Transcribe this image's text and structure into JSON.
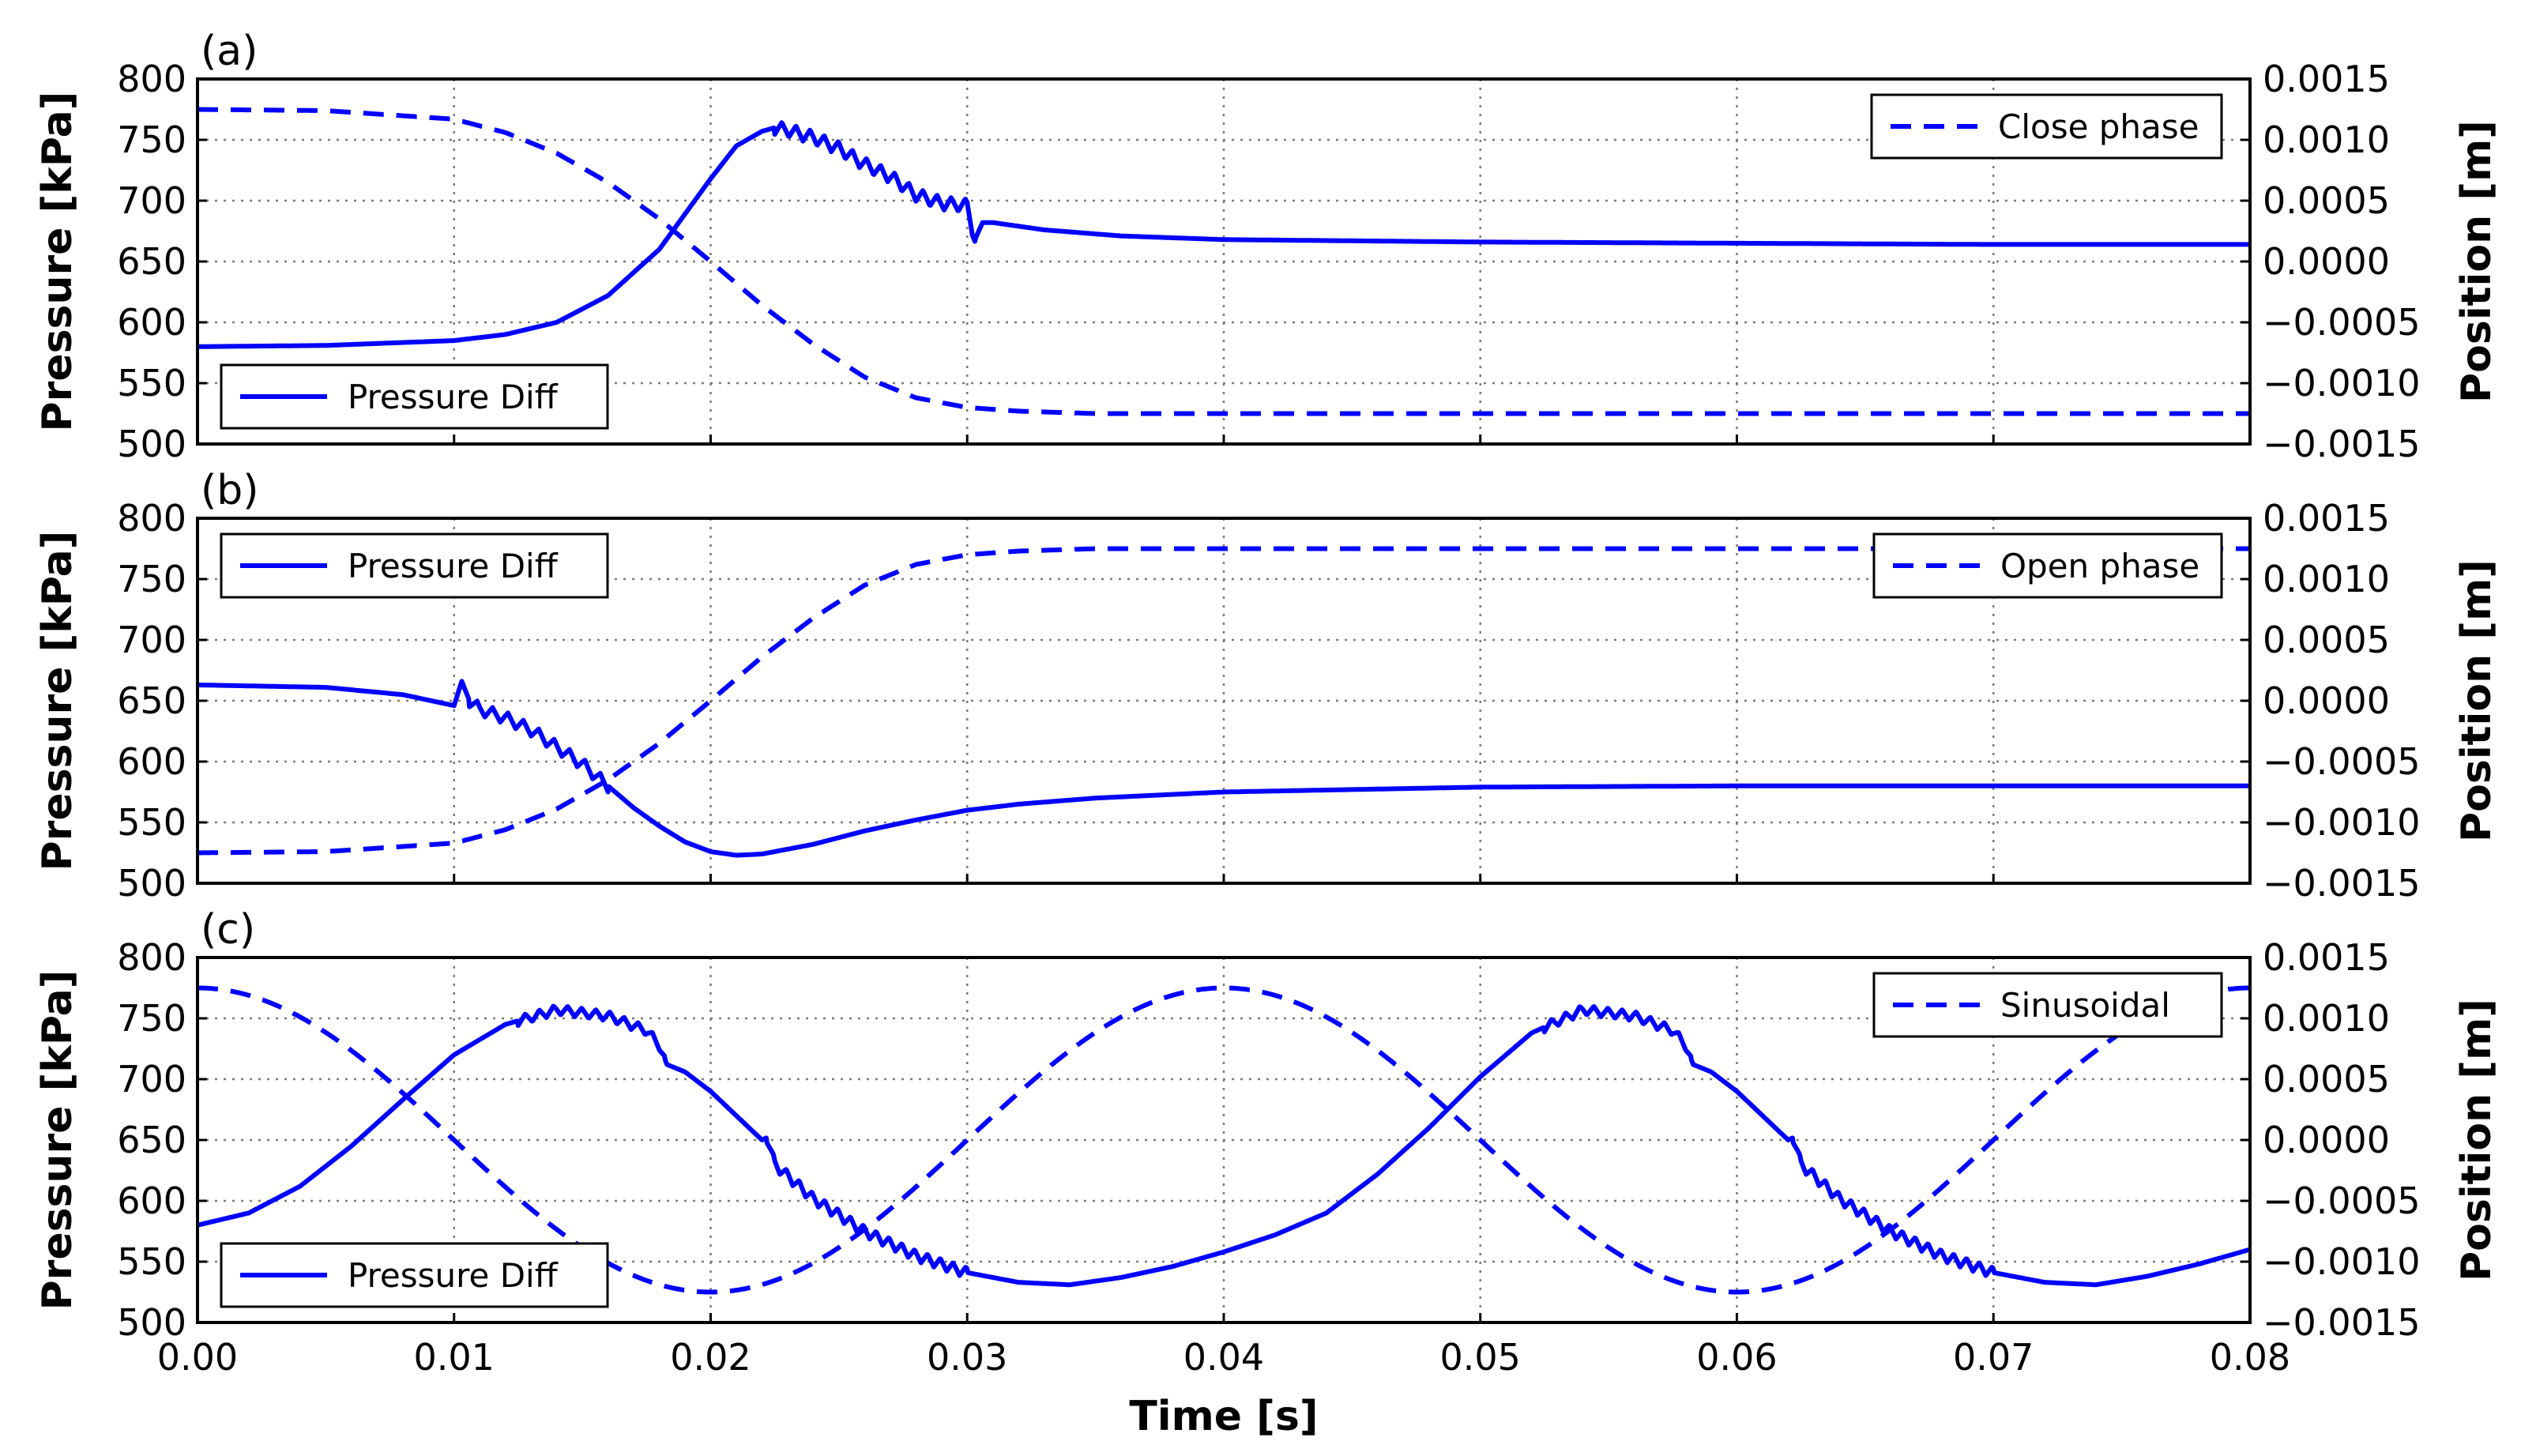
{
  "chart_data": {
    "xlabel": "Time [s]",
    "x_ticks": [
      "0.00",
      "0.01",
      "0.02",
      "0.03",
      "0.04",
      "0.05",
      "0.06",
      "0.07",
      "0.08"
    ],
    "xlim": [
      0,
      0.08
    ],
    "colors": {
      "series": "#0000ff",
      "grid": "#7a7a7a",
      "axes": "#000000"
    },
    "panels": [
      {
        "label": "(a)",
        "type": "line",
        "left_axis": {
          "title": "Pressure [kPa]",
          "ylim": [
            500,
            800
          ],
          "ticks": [
            "800",
            "750",
            "700",
            "650",
            "600",
            "550",
            "500"
          ]
        },
        "right_axis": {
          "title": "Position [m]",
          "ylim": [
            -0.0015,
            0.0015
          ],
          "ticks": [
            "0.0015",
            "0.0010",
            "0.0005",
            "0.0000",
            "−0.0005",
            "−0.0010",
            "−0.0015"
          ]
        },
        "legend_left": {
          "label": "Pressure Diff",
          "placement": "lower-left"
        },
        "legend_right": {
          "label": "Close phase",
          "placement": "upper-right"
        },
        "series": [
          {
            "name": "Pressure Diff",
            "axis": "left",
            "style": "solid",
            "x": [
              0,
              0.005,
              0.01,
              0.012,
              0.014,
              0.016,
              0.018,
              0.02,
              0.021,
              0.022,
              0.0225,
              0.023,
              0.024,
              0.025,
              0.026,
              0.027,
              0.028,
              0.029,
              0.03,
              0.0303,
              0.0306,
              0.031,
              0.033,
              0.036,
              0.04,
              0.05,
              0.06,
              0.07,
              0.08
            ],
            "y": [
              580,
              581,
              585,
              590,
              600,
              622,
              660,
              718,
              745,
              757,
              760,
              758,
              752,
              743,
              730,
              720,
              705,
              698,
              696,
              668,
              682,
              682,
              676,
              671,
              668,
              666,
              665,
              664,
              664
            ],
            "ripple": [
              {
                "start": 0.0225,
                "end": 0.0303,
                "amp": 11,
                "period": 0.00055
              }
            ]
          },
          {
            "name": "Close phase",
            "axis": "right",
            "style": "dashed",
            "x": [
              0,
              0.005,
              0.01,
              0.012,
              0.014,
              0.016,
              0.018,
              0.02,
              0.022,
              0.024,
              0.026,
              0.028,
              0.03,
              0.032,
              0.035,
              0.04,
              0.05,
              0.06,
              0.07,
              0.08
            ],
            "y": [
              0.00125,
              0.00124,
              0.00117,
              0.00106,
              0.00089,
              0.00065,
              0.00035,
              0.0,
              -0.00036,
              -0.00068,
              -0.00095,
              -0.00112,
              -0.0012,
              -0.00123,
              -0.00125,
              -0.00125,
              -0.00125,
              -0.00125,
              -0.00125,
              -0.00125
            ]
          }
        ]
      },
      {
        "label": "(b)",
        "type": "line",
        "left_axis": {
          "title": "Pressure [kPa]",
          "ylim": [
            500,
            800
          ],
          "ticks": [
            "800",
            "750",
            "700",
            "650",
            "600",
            "550",
            "500"
          ]
        },
        "right_axis": {
          "title": "Position [m]",
          "ylim": [
            -0.0015,
            0.0015
          ],
          "ticks": [
            "0.0015",
            "0.0010",
            "0.0005",
            "0.0000",
            "−0.0005",
            "−0.0010",
            "−0.0015"
          ]
        },
        "legend_left": {
          "label": "Pressure Diff",
          "placement": "upper-left"
        },
        "legend_right": {
          "label": "Open phase",
          "placement": "upper-right"
        },
        "series": [
          {
            "name": "Pressure Diff",
            "axis": "left",
            "style": "solid",
            "x": [
              0,
              0.005,
              0.008,
              0.01,
              0.0103,
              0.0106,
              0.011,
              0.012,
              0.013,
              0.014,
              0.015,
              0.016,
              0.017,
              0.018,
              0.019,
              0.02,
              0.021,
              0.022,
              0.024,
              0.026,
              0.028,
              0.03,
              0.032,
              0.035,
              0.04,
              0.05,
              0.06,
              0.07,
              0.08
            ],
            "y": [
              663,
              661,
              655,
              646,
              666,
              650,
              643,
              636,
              626,
              612,
              598,
              580,
              562,
              547,
              534,
              526,
              523,
              524,
              532,
              543,
              552,
              560,
              565,
              570,
              575,
              579,
              580,
              580,
              580
            ],
            "ripple": [
              {
                "start": 0.0106,
                "end": 0.016,
                "amp": 10,
                "period": 0.0006
              }
            ]
          },
          {
            "name": "Open phase",
            "axis": "right",
            "style": "dashed",
            "x": [
              0,
              0.005,
              0.01,
              0.012,
              0.014,
              0.016,
              0.018,
              0.02,
              0.022,
              0.024,
              0.026,
              0.028,
              0.03,
              0.032,
              0.035,
              0.04,
              0.05,
              0.06,
              0.07,
              0.08
            ],
            "y": [
              -0.00125,
              -0.00124,
              -0.00117,
              -0.00106,
              -0.00089,
              -0.00065,
              -0.00035,
              0.0,
              0.00036,
              0.00068,
              0.00095,
              0.00112,
              0.0012,
              0.00123,
              0.00125,
              0.00125,
              0.00125,
              0.00125,
              0.00125,
              0.00125
            ]
          }
        ]
      },
      {
        "label": "(c)",
        "type": "line",
        "left_axis": {
          "title": "Pressure [kPa]",
          "ylim": [
            500,
            800
          ],
          "ticks": [
            "800",
            "750",
            "700",
            "650",
            "600",
            "550",
            "500"
          ]
        },
        "right_axis": {
          "title": "Position [m]",
          "ylim": [
            -0.0015,
            0.0015
          ],
          "ticks": [
            "0.0015",
            "0.0010",
            "0.0005",
            "0.0000",
            "−0.0005",
            "−0.0010",
            "−0.0015"
          ]
        },
        "legend_left": {
          "label": "Pressure Diff",
          "placement": "lower-left"
        },
        "legend_right": {
          "label": "Sinusoidal",
          "placement": "upper-right"
        },
        "series": [
          {
            "name": "Pressure Diff",
            "axis": "left",
            "style": "solid",
            "x": [
              0,
              0.002,
              0.004,
              0.006,
              0.008,
              0.01,
              0.012,
              0.014,
              0.016,
              0.0175,
              0.018,
              0.0183,
              0.019,
              0.02,
              0.021,
              0.022,
              0.0222,
              0.0225,
              0.024,
              0.026,
              0.028,
              0.03,
              0.032,
              0.034,
              0.036,
              0.038,
              0.04,
              0.042,
              0.044,
              0.046,
              0.048,
              0.05,
              0.052,
              0.054,
              0.056,
              0.0575,
              0.058,
              0.0583,
              0.059,
              0.06,
              0.061,
              0.062,
              0.0622,
              0.0625,
              0.064,
              0.066,
              0.068,
              0.07,
              0.072,
              0.074,
              0.076,
              0.078,
              0.08
            ],
            "y": [
              580,
              590,
              612,
              645,
              683,
              720,
              745,
              757,
              752,
              740,
              728,
              712,
              706,
              690,
              670,
              650,
              652,
              630,
              602,
              575,
              555,
              541,
              533,
              531,
              537,
              546,
              558,
              572,
              590,
              622,
              660,
              702,
              738,
              757,
              752,
              740,
              728,
              712,
              706,
              690,
              670,
              650,
              652,
              630,
              602,
              575,
              555,
              541,
              533,
              531,
              538,
              548,
              560
            ],
            "ripple": [
              {
                "start": 0.0125,
                "end": 0.0182,
                "amp": 8,
                "period": 0.00055
              },
              {
                "start": 0.0222,
                "end": 0.03,
                "amp": 9,
                "period": 0.0005
              },
              {
                "start": 0.0525,
                "end": 0.0582,
                "amp": 8,
                "period": 0.00055
              },
              {
                "start": 0.0622,
                "end": 0.07,
                "amp": 9,
                "period": 0.0005
              }
            ]
          },
          {
            "name": "Sinusoidal",
            "axis": "right",
            "style": "dashed",
            "function": "cosine",
            "amplitude": 0.00125,
            "period": 0.04,
            "x_range": [
              0,
              0.08
            ]
          }
        ]
      }
    ]
  }
}
